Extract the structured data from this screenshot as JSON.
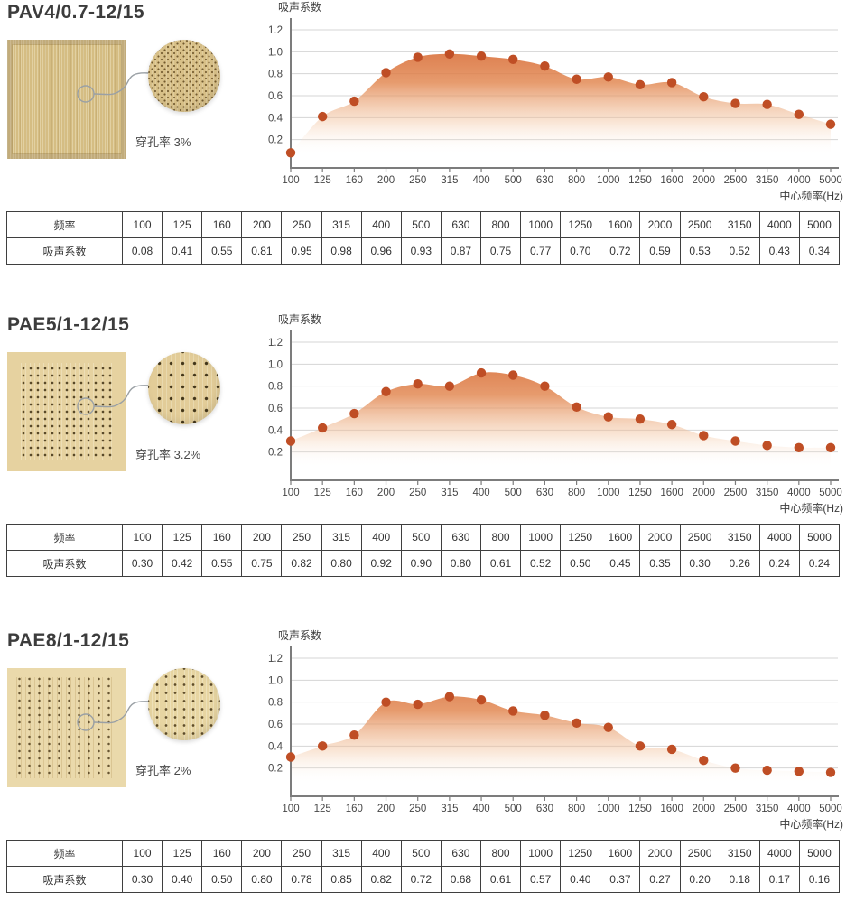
{
  "colors": {
    "marker": "#bf4e25",
    "area_gradient_top": "#d4622e",
    "axis": "#7c7c7c",
    "grid": "#d4d4d4",
    "table_border": "#3f3f3f",
    "text": "#3c3c3c"
  },
  "table_labels": {
    "frequency_row": "频率",
    "coefficient_row": "吸声系数"
  },
  "sections": [
    {
      "title": "PAV4/0.7-12/15",
      "perforation_label": "穿孔率 3%"
    },
    {
      "title": "PAE5/1-12/15",
      "perforation_label": "穿孔率 3.2%"
    },
    {
      "title": "PAE8/1-12/15",
      "perforation_label": "穿孔率 2%"
    }
  ],
  "chart_data": [
    {
      "type": "area",
      "title": "PAV4/0.7-12/15",
      "categories": [
        100,
        125,
        160,
        200,
        250,
        315,
        400,
        500,
        630,
        800,
        1000,
        1250,
        1600,
        2000,
        2500,
        3150,
        4000,
        5000
      ],
      "values": [
        0.08,
        0.41,
        0.55,
        0.81,
        0.95,
        0.98,
        0.96,
        0.93,
        0.87,
        0.75,
        0.77,
        0.7,
        0.72,
        0.59,
        0.53,
        0.52,
        0.43,
        0.34
      ],
      "xlabel": "中心频率(Hz)",
      "ylabel": "吸声系数",
      "ylim": [
        0,
        1.2
      ],
      "yticks": [
        0.2,
        0.4,
        0.6,
        0.8,
        1.0,
        1.2
      ],
      "grid": true,
      "legend": false,
      "marker_color": "#bf4e25"
    },
    {
      "type": "area",
      "title": "PAE5/1-12/15",
      "categories": [
        100,
        125,
        160,
        200,
        250,
        315,
        400,
        500,
        630,
        800,
        1000,
        1250,
        1600,
        2000,
        2500,
        3150,
        4000,
        5000
      ],
      "values": [
        0.3,
        0.42,
        0.55,
        0.75,
        0.82,
        0.8,
        0.92,
        0.9,
        0.8,
        0.61,
        0.52,
        0.5,
        0.45,
        0.35,
        0.3,
        0.26,
        0.24,
        0.24
      ],
      "xlabel": "中心频率(Hz)",
      "ylabel": "吸声系数",
      "ylim": [
        0,
        1.2
      ],
      "yticks": [
        0.2,
        0.4,
        0.6,
        0.8,
        1.0,
        1.2
      ],
      "grid": true,
      "legend": false,
      "marker_color": "#bf4e25"
    },
    {
      "type": "area",
      "title": "PAE8/1-12/15",
      "categories": [
        100,
        125,
        160,
        200,
        250,
        315,
        400,
        500,
        630,
        800,
        1000,
        1250,
        1600,
        2000,
        2500,
        3150,
        4000,
        5000
      ],
      "values": [
        0.3,
        0.4,
        0.5,
        0.8,
        0.78,
        0.85,
        0.82,
        0.72,
        0.68,
        0.61,
        0.57,
        0.4,
        0.37,
        0.27,
        0.2,
        0.18,
        0.17,
        0.16
      ],
      "xlabel": "中心频率(Hz)",
      "ylabel": "吸声系数",
      "ylim": [
        0,
        1.2
      ],
      "yticks": [
        0.2,
        0.4,
        0.6,
        0.8,
        1.0,
        1.2
      ],
      "grid": true,
      "legend": false,
      "marker_color": "#bf4e25"
    }
  ]
}
